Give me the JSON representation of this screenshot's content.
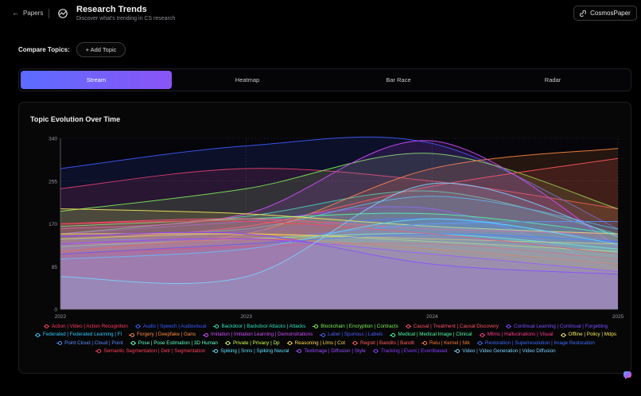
{
  "header": {
    "back_label": "Papers",
    "title": "Research Trends",
    "subtitle": "Discover what's trending in CS research",
    "brand_label": "CosmosPaper"
  },
  "compare": {
    "label": "Compare Topics:",
    "add_label": "+ Add Topic"
  },
  "tabs": [
    {
      "label": "Stream",
      "active": true
    },
    {
      "label": "Heatmap",
      "active": false
    },
    {
      "label": "Bar Race",
      "active": false
    },
    {
      "label": "Radar",
      "active": false
    }
  ],
  "card": {
    "title": "Topic Evolution Over Time"
  },
  "chart_data": {
    "type": "area",
    "title": "Topic Evolution Over Time",
    "x": [
      "2022",
      "2023",
      "2024",
      "2025"
    ],
    "ylim": [
      0,
      340
    ],
    "yticks": [
      0,
      85,
      170,
      255,
      340
    ],
    "grid": true,
    "legend_position": "bottom",
    "series": [
      {
        "name": "Action | Video | Action Recognition",
        "color": "#ff3b5c",
        "values": [
          240,
          280,
          255,
          200
        ]
      },
      {
        "name": "Audio | Speech | Audiovisual",
        "color": "#3d5cff",
        "values": [
          280,
          325,
          330,
          160
        ]
      },
      {
        "name": "Backdoor | Backdoor Attacks | Attacks",
        "color": "#33e0b8",
        "values": [
          150,
          185,
          235,
          150
        ]
      },
      {
        "name": "Blockchain | Encryption | Contracts",
        "color": "#7cf056",
        "values": [
          195,
          240,
          310,
          200
        ]
      },
      {
        "name": "Causal | Treatment | Causal Discovery",
        "color": "#ff4f64",
        "values": [
          140,
          165,
          245,
          300
        ]
      },
      {
        "name": "Continual Learning | Continual | Forgetting",
        "color": "#7a4cff",
        "values": [
          150,
          175,
          200,
          80
        ]
      },
      {
        "name": "Federated | Federated Learning | Fl",
        "color": "#33c7ff",
        "values": [
          150,
          160,
          225,
          160
        ]
      },
      {
        "name": "Forgery | Deepfake | Gans",
        "color": "#ff8a3d",
        "values": [
          130,
          150,
          280,
          320
        ]
      },
      {
        "name": "Imitation | Imitation Learning | Demonstrations",
        "color": "#d24cff",
        "values": [
          160,
          190,
          335,
          125
        ]
      },
      {
        "name": "Label | Spurious | Labels",
        "color": "#4f5dff",
        "values": [
          130,
          155,
          180,
          135
        ]
      },
      {
        "name": "Medical | Medical Image | Clinical",
        "color": "#4dfb9f",
        "values": [
          165,
          180,
          190,
          150
        ]
      },
      {
        "name": "Mllms | Hallucinations | Visual",
        "color": "#ff3a8a",
        "values": [
          170,
          180,
          160,
          150
        ]
      },
      {
        "name": "Offline | Policy | Mdps",
        "color": "#f5e85a",
        "values": [
          200,
          190,
          165,
          150
        ]
      },
      {
        "name": "Point Cloud | Cloud | Point",
        "color": "#5c8cff",
        "values": [
          140,
          140,
          170,
          175
        ]
      },
      {
        "name": "Pose | Pose Estimation | 3D Human",
        "color": "#62ffc1",
        "values": [
          125,
          140,
          150,
          120
        ]
      },
      {
        "name": "Private | Privacy | Dp",
        "color": "#cdff52",
        "values": [
          140,
          150,
          135,
          115
        ]
      },
      {
        "name": "Reasoning | Llms | Cot",
        "color": "#ffd84a",
        "values": [
          150,
          150,
          140,
          130
        ]
      },
      {
        "name": "Regret | Bandits | Bandit",
        "color": "#ff5c5c",
        "values": [
          110,
          125,
          130,
          100
        ]
      },
      {
        "name": "Relu | Kernel | Ntk",
        "color": "#ff7a33",
        "values": [
          115,
          140,
          120,
          90
        ]
      },
      {
        "name": "Restoration | Superresolution | Image Restoration",
        "color": "#3d6dff",
        "values": [
          110,
          130,
          150,
          135
        ]
      },
      {
        "name": "Semantic Segmentation | Detr | Segmentation",
        "color": "#ff4058",
        "values": [
          170,
          175,
          150,
          110
        ]
      },
      {
        "name": "Spiking | Snns | Spiking Neural",
        "color": "#5ce0ff",
        "values": [
          100,
          120,
          180,
          130
        ]
      },
      {
        "name": "Textimage | Diffusion | Style",
        "color": "#9a4cff",
        "values": [
          130,
          140,
          110,
          75
        ]
      },
      {
        "name": "Tracking | Event | Eventbased",
        "color": "#8a3dff",
        "values": [
          145,
          150,
          90,
          70
        ]
      },
      {
        "name": "Video | Video Generation | Video Diffusion",
        "color": "#7ad0ff",
        "values": [
          65,
          65,
          250,
          145
        ]
      }
    ]
  }
}
